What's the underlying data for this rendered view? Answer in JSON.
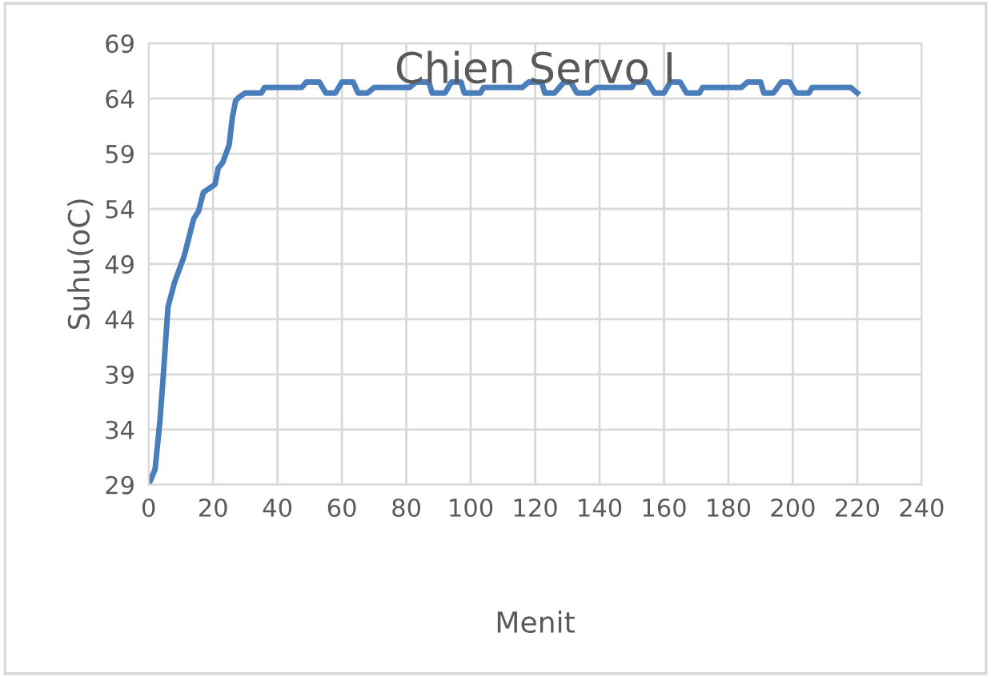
{
  "chart_data": {
    "type": "line",
    "title": "Chien Servo I",
    "xlabel": "Menit",
    "ylabel": "Suhu(oC)",
    "x": [
      0,
      2,
      3.5,
      4.6,
      6,
      8,
      11,
      14,
      15.5,
      17,
      19,
      20.6,
      21.6,
      23,
      25,
      26,
      27,
      28,
      30,
      35,
      36,
      47.5,
      49,
      53,
      55,
      58,
      60,
      63.5,
      65,
      68,
      70,
      81,
      83,
      87,
      88,
      92,
      94,
      97,
      98,
      103,
      104,
      116,
      118,
      122,
      123,
      126,
      129,
      131,
      133,
      137,
      139,
      150,
      151,
      155,
      157,
      160,
      162,
      165,
      167,
      171,
      172,
      184,
      186,
      190,
      191,
      194,
      196.5,
      199,
      201,
      205,
      206,
      218,
      220
    ],
    "series": [
      {
        "color": "#4a7ebb",
        "values": [
          29,
          30.4,
          34.8,
          39.1,
          45.1,
          47.3,
          49.7,
          53.1,
          53.8,
          55.5,
          55.9,
          56.2,
          57.7,
          58.2,
          59.8,
          62.3,
          63.8,
          64.1,
          64.5,
          64.5,
          65,
          65,
          65.5,
          65.5,
          64.5,
          64.5,
          65.5,
          65.5,
          64.5,
          64.5,
          65,
          65,
          65.5,
          65.5,
          64.5,
          64.5,
          65.5,
          65.5,
          64.5,
          64.5,
          65,
          65,
          65.5,
          65.5,
          64.5,
          64.5,
          65.5,
          65.5,
          64.5,
          64.5,
          65,
          65,
          65.5,
          65.5,
          64.5,
          64.5,
          65.5,
          65.5,
          64.5,
          64.5,
          65,
          65,
          65.5,
          65.5,
          64.5,
          64.5,
          65.5,
          65.5,
          64.5,
          64.5,
          65,
          65,
          64.5
        ]
      }
    ],
    "xlim": [
      0,
      240
    ],
    "xticks": [
      0,
      20,
      40,
      60,
      80,
      100,
      120,
      140,
      160,
      180,
      200,
      220,
      240
    ],
    "ylim": [
      29,
      69
    ],
    "yticks": [
      29,
      34,
      39,
      44,
      49,
      54,
      59,
      64,
      69
    ],
    "grid": true,
    "legend": false,
    "marker": "none",
    "line_style": "solid"
  }
}
